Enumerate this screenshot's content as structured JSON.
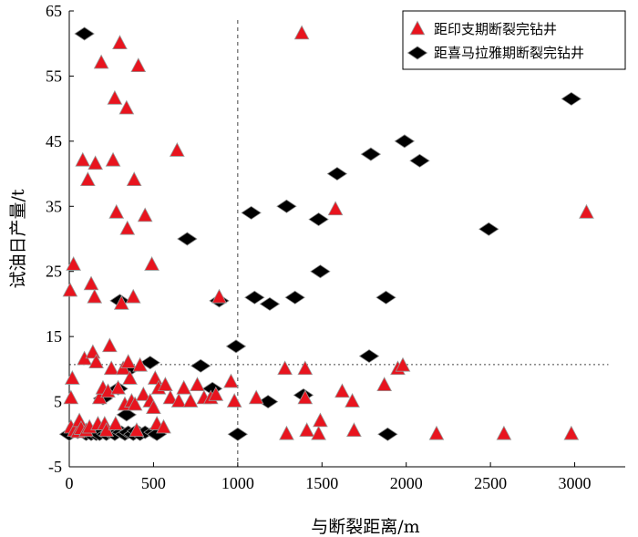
{
  "chart_data": {
    "type": "scatter",
    "xlabel": "与断裂距离/m",
    "ylabel": "试油日产量/t",
    "xlim": [
      0,
      3300
    ],
    "ylim": [
      -5,
      65
    ],
    "x_ticks": [
      0,
      500,
      1000,
      1500,
      2000,
      2500,
      3000
    ],
    "y_ticks": [
      -5,
      5,
      15,
      25,
      35,
      45,
      55,
      65
    ],
    "legend_position": "top-right",
    "reference_lines": [
      {
        "orientation": "vertical",
        "value": 1000,
        "style": "dashed"
      },
      {
        "orientation": "horizontal",
        "value": 10.7,
        "style": "dotted"
      }
    ],
    "series": [
      {
        "name": "距印支期断裂完钻井",
        "marker": "triangle",
        "color": "#e8141e",
        "points": [
          [
            5,
            22
          ],
          [
            10,
            5.5
          ],
          [
            18,
            8.5
          ],
          [
            25,
            26
          ],
          [
            10,
            1
          ],
          [
            30,
            0.5
          ],
          [
            50,
            0.3
          ],
          [
            60,
            2
          ],
          [
            70,
            0.8
          ],
          [
            80,
            42
          ],
          [
            90,
            11.5
          ],
          [
            100,
            0.5
          ],
          [
            110,
            39
          ],
          [
            120,
            1
          ],
          [
            130,
            23
          ],
          [
            140,
            12.5
          ],
          [
            150,
            21
          ],
          [
            155,
            41.5
          ],
          [
            160,
            11
          ],
          [
            170,
            1.5
          ],
          [
            180,
            5.5
          ],
          [
            190,
            57
          ],
          [
            200,
            7
          ],
          [
            210,
            1.5
          ],
          [
            220,
            0.5
          ],
          [
            230,
            6.5
          ],
          [
            240,
            13.5
          ],
          [
            250,
            10
          ],
          [
            260,
            42
          ],
          [
            270,
            51.5
          ],
          [
            275,
            1.5
          ],
          [
            280,
            34
          ],
          [
            290,
            7
          ],
          [
            300,
            60
          ],
          [
            310,
            20
          ],
          [
            320,
            10
          ],
          [
            330,
            4.5
          ],
          [
            340,
            50
          ],
          [
            345,
            31.5
          ],
          [
            350,
            11
          ],
          [
            360,
            8.5
          ],
          [
            370,
            5
          ],
          [
            380,
            21
          ],
          [
            385,
            39
          ],
          [
            390,
            4.5
          ],
          [
            400,
            0.5
          ],
          [
            410,
            56.5
          ],
          [
            420,
            10.5
          ],
          [
            440,
            6
          ],
          [
            450,
            33.5
          ],
          [
            480,
            5
          ],
          [
            490,
            26
          ],
          [
            500,
            4
          ],
          [
            510,
            8.5
          ],
          [
            520,
            1.5
          ],
          [
            530,
            7
          ],
          [
            560,
            1
          ],
          [
            570,
            7.5
          ],
          [
            600,
            5.5
          ],
          [
            640,
            43.5
          ],
          [
            650,
            5
          ],
          [
            680,
            7
          ],
          [
            720,
            5
          ],
          [
            760,
            7.5
          ],
          [
            800,
            5.5
          ],
          [
            840,
            5.5
          ],
          [
            870,
            6
          ],
          [
            890,
            21
          ],
          [
            960,
            8
          ],
          [
            980,
            5
          ],
          [
            1110,
            5.5
          ],
          [
            1280,
            10
          ],
          [
            1290,
            0
          ],
          [
            1380,
            61.5
          ],
          [
            1400,
            10
          ],
          [
            1400,
            5.5
          ],
          [
            1410,
            0.5
          ],
          [
            1480,
            0
          ],
          [
            1490,
            2
          ],
          [
            1580,
            34.5
          ],
          [
            1620,
            6.5
          ],
          [
            1680,
            5
          ],
          [
            1690,
            0.5
          ],
          [
            1870,
            7.5
          ],
          [
            1950,
            10
          ],
          [
            1980,
            10.5
          ],
          [
            2180,
            0
          ],
          [
            2580,
            0
          ],
          [
            2980,
            0
          ],
          [
            3070,
            34
          ]
        ]
      },
      {
        "name": "距喜马拉雅期断裂完钻井",
        "marker": "diamond",
        "color": "#000000",
        "points": [
          [
            0,
            0
          ],
          [
            50,
            0.3
          ],
          [
            90,
            61.5
          ],
          [
            100,
            0
          ],
          [
            130,
            0
          ],
          [
            160,
            0
          ],
          [
            180,
            0
          ],
          [
            200,
            5.5
          ],
          [
            220,
            0
          ],
          [
            240,
            0.3
          ],
          [
            270,
            0
          ],
          [
            290,
            7
          ],
          [
            300,
            20.5
          ],
          [
            310,
            0.3
          ],
          [
            330,
            0
          ],
          [
            340,
            3
          ],
          [
            350,
            0.3
          ],
          [
            360,
            10
          ],
          [
            380,
            0
          ],
          [
            400,
            0.5
          ],
          [
            420,
            0
          ],
          [
            450,
            0.3
          ],
          [
            480,
            11
          ],
          [
            500,
            0.3
          ],
          [
            520,
            0
          ],
          [
            700,
            30
          ],
          [
            780,
            10.5
          ],
          [
            850,
            7
          ],
          [
            890,
            20.5
          ],
          [
            990,
            13.5
          ],
          [
            1000,
            0
          ],
          [
            1080,
            34
          ],
          [
            1100,
            21
          ],
          [
            1180,
            5
          ],
          [
            1190,
            20
          ],
          [
            1290,
            35
          ],
          [
            1340,
            21
          ],
          [
            1390,
            6
          ],
          [
            1480,
            33
          ],
          [
            1490,
            25
          ],
          [
            1590,
            40
          ],
          [
            1780,
            12
          ],
          [
            1790,
            43
          ],
          [
            1880,
            21
          ],
          [
            1890,
            0
          ],
          [
            1990,
            45
          ],
          [
            2080,
            42
          ],
          [
            2490,
            31.5
          ],
          [
            2980,
            51.5
          ]
        ]
      }
    ]
  }
}
